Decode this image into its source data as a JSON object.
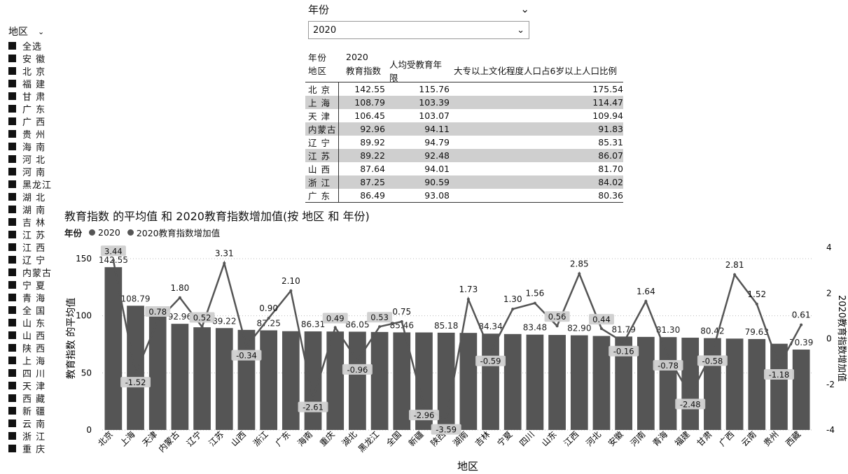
{
  "region_slicer": {
    "title": "地区",
    "items": [
      "全选",
      "安 徽",
      "北 京",
      "福 建",
      "甘 肃",
      "广 东",
      "广 西",
      "贵 州",
      "海 南",
      "河 北",
      "河 南",
      "黑龙江",
      "湖 北",
      "湖 南",
      "吉 林",
      "江 苏",
      "江 西",
      "辽 宁",
      "内蒙古",
      "宁 夏",
      "青 海",
      "全 国",
      "山 东",
      "山 西",
      "陕 西",
      "上 海",
      "四 川",
      "天 津",
      "西 藏",
      "新 疆",
      "云 南",
      "浙 江",
      "重 庆"
    ]
  },
  "year_slicer": {
    "title": "年份",
    "value": "2020"
  },
  "matrix": {
    "header_year_label": "年份",
    "header_year_value": "2020",
    "header_region_label": "地区",
    "columns": [
      "教育指数",
      "人均受教育年限",
      "大专以上文化程度人口占6岁以上人口比例"
    ],
    "rows": [
      {
        "region": "北 京",
        "v": [
          "142.55",
          "115.76",
          "175.54"
        ]
      },
      {
        "region": "上 海",
        "v": [
          "108.79",
          "103.39",
          "114.47"
        ]
      },
      {
        "region": "天 津",
        "v": [
          "106.45",
          "103.07",
          "109.94"
        ]
      },
      {
        "region": "内蒙古",
        "v": [
          "92.96",
          "94.11",
          "91.83"
        ]
      },
      {
        "region": "辽 宁",
        "v": [
          "89.92",
          "94.79",
          "85.31"
        ]
      },
      {
        "region": "江 苏",
        "v": [
          "89.22",
          "92.48",
          "86.07"
        ]
      },
      {
        "region": "山 西",
        "v": [
          "87.64",
          "94.01",
          "81.70"
        ]
      },
      {
        "region": "浙 江",
        "v": [
          "87.25",
          "90.59",
          "84.02"
        ]
      },
      {
        "region": "广 东",
        "v": [
          "86.49",
          "93.08",
          "80.36"
        ]
      }
    ]
  },
  "chart_data": {
    "type": "bar",
    "title": "教育指数 的平均值 和 2020教育指数增加值(按 地区 和 年份)",
    "legend_title": "年份",
    "legend_placement": "top-left",
    "xlabel": "地区",
    "ylabel": "教育指数 的平均值",
    "y2label": "2020教育指数增加值",
    "ylim": [
      0,
      150
    ],
    "yticks": [
      0,
      50,
      100,
      150
    ],
    "y2lim": [
      -4,
      4
    ],
    "y2ticks": [
      -4,
      -2,
      0,
      2,
      4
    ],
    "categories": [
      "北京",
      "上海",
      "天津",
      "内蒙古",
      "辽宁",
      "江苏",
      "山西",
      "浙江",
      "广东",
      "海南",
      "重庆",
      "湖北",
      "黑龙江",
      "全国",
      "新疆",
      "陕西",
      "湖南",
      "吉林",
      "宁夏",
      "四川",
      "山东",
      "江西",
      "河北",
      "安徽",
      "河南",
      "青海",
      "福建",
      "甘肃",
      "广西",
      "云南",
      "贵州",
      "西藏"
    ],
    "series": [
      {
        "name": "2020",
        "kind": "bar",
        "color": "#555555",
        "values": [
          142.55,
          108.79,
          106.45,
          92.96,
          89.92,
          89.22,
          87.64,
          87.25,
          86.49,
          86.31,
          86.2,
          86.05,
          85.8,
          85.46,
          85.4,
          85.18,
          85.0,
          84.34,
          84.0,
          83.48,
          83.2,
          82.9,
          82.3,
          81.79,
          81.5,
          81.3,
          80.8,
          80.42,
          80.0,
          79.63,
          75.5,
          70.39
        ],
        "labels": [
          "142.55",
          "108.79",
          "",
          "92.96",
          "",
          "89.22",
          "",
          "87.25",
          "",
          "86.31",
          "",
          "86.05",
          "",
          "85.46",
          "",
          "85.18",
          "",
          "84.34",
          "",
          "83.48",
          "",
          "82.90",
          "",
          "81.79",
          "",
          "81.30",
          "",
          "80.42",
          "",
          "79.63",
          "",
          "70.39"
        ]
      },
      {
        "name": "2020教育指数增加值",
        "kind": "line",
        "axis": "right",
        "color": "#555555",
        "values": [
          3.44,
          -1.52,
          0.78,
          1.8,
          0.52,
          3.31,
          -0.34,
          0.9,
          2.1,
          -2.61,
          0.49,
          -0.96,
          0.53,
          0.75,
          -2.96,
          -3.59,
          1.73,
          -0.59,
          1.3,
          1.56,
          0.56,
          2.85,
          0.44,
          -0.16,
          1.64,
          -0.78,
          -2.48,
          -0.58,
          2.81,
          1.52,
          -1.18,
          0.61
        ],
        "labels": [
          "3.44",
          "-1.52",
          "0.78",
          "1.80",
          "0.52",
          "3.31",
          "-0.34",
          "0.90",
          "2.10",
          "-2.61",
          "0.49",
          "-0.96",
          "0.53",
          "0.75",
          "-2.96",
          "-3.59",
          "1.73",
          "-0.59",
          "1.30",
          "1.56",
          "0.56",
          "2.85",
          "0.44",
          "-0.16",
          "1.64",
          "-0.78",
          "-2.48",
          "-0.58",
          "2.81",
          "1.52",
          "-1.18",
          "0.61"
        ],
        "boxed": [
          true,
          true,
          true,
          false,
          true,
          false,
          true,
          false,
          false,
          true,
          true,
          true,
          true,
          false,
          true,
          true,
          false,
          true,
          false,
          false,
          true,
          false,
          true,
          true,
          false,
          true,
          true,
          true,
          false,
          false,
          true,
          false
        ]
      }
    ]
  }
}
